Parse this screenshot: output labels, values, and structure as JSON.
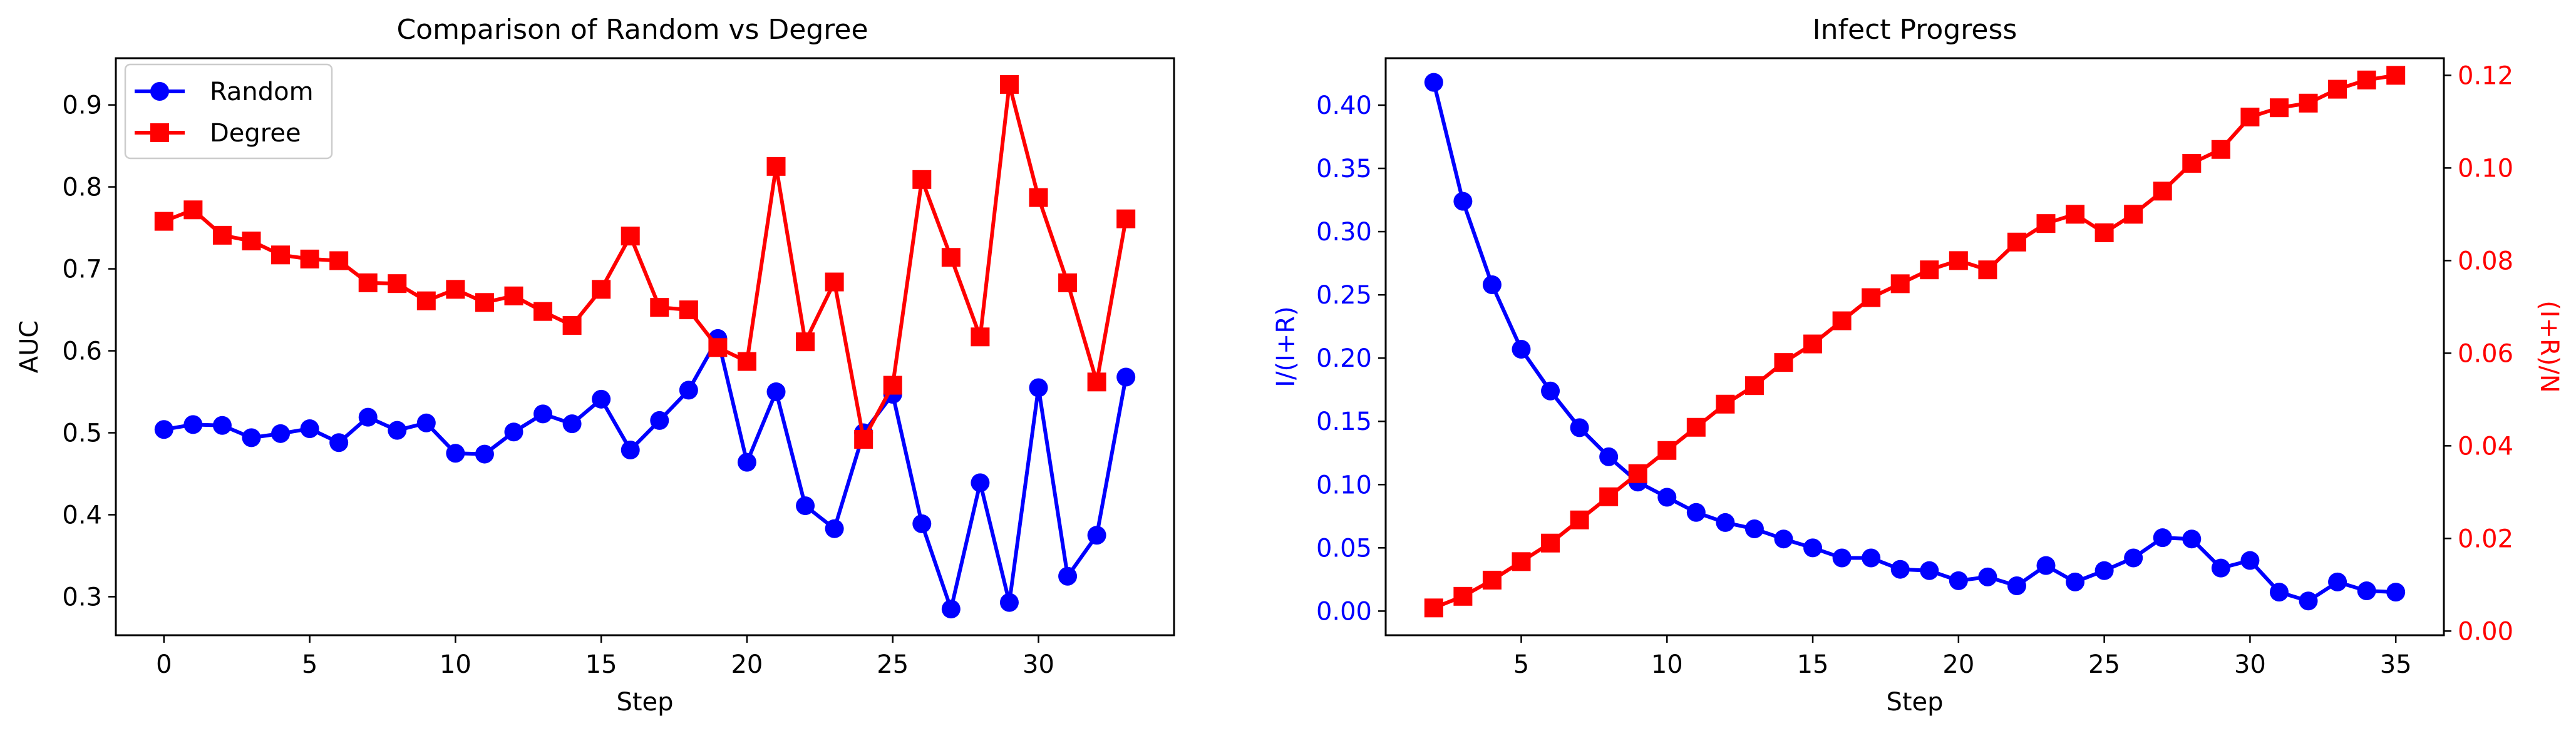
{
  "chart_data": [
    {
      "type": "line",
      "title": "Comparison of Random vs Degree",
      "xlabel": "Step",
      "ylabel": "AUC",
      "xlim": [
        -1.65,
        34.65
      ],
      "ylim": [
        0.253,
        0.957
      ],
      "xticks": [
        0,
        5,
        10,
        15,
        20,
        25,
        30
      ],
      "yticks": [
        0.3,
        0.4,
        0.5,
        0.6,
        0.7,
        0.8,
        0.9
      ],
      "grid": false,
      "legend": "upper-left",
      "x": [
        0,
        1,
        2,
        3,
        4,
        5,
        6,
        7,
        8,
        9,
        10,
        11,
        12,
        13,
        14,
        15,
        16,
        17,
        18,
        19,
        20,
        21,
        22,
        23,
        24,
        25,
        26,
        27,
        28,
        29,
        30,
        31,
        32,
        33
      ],
      "series": [
        {
          "name": "Random",
          "color": "#0000ff",
          "marker": "circle",
          "values": [
            0.504,
            0.51,
            0.509,
            0.494,
            0.499,
            0.505,
            0.488,
            0.519,
            0.503,
            0.512,
            0.475,
            0.474,
            0.501,
            0.523,
            0.511,
            0.541,
            0.479,
            0.515,
            0.552,
            0.615,
            0.464,
            0.55,
            0.411,
            0.383,
            0.5,
            0.547,
            0.389,
            0.285,
            0.439,
            0.293,
            0.555,
            0.325,
            0.375,
            0.568
          ]
        },
        {
          "name": "Degree",
          "color": "#ff0000",
          "marker": "square",
          "values": [
            0.758,
            0.772,
            0.741,
            0.734,
            0.717,
            0.712,
            0.71,
            0.683,
            0.682,
            0.661,
            0.675,
            0.659,
            0.667,
            0.648,
            0.631,
            0.675,
            0.74,
            0.653,
            0.65,
            0.604,
            0.587,
            0.825,
            0.611,
            0.684,
            0.492,
            0.558,
            0.809,
            0.714,
            0.617,
            0.925,
            0.787,
            0.683,
            0.562,
            0.761
          ]
        }
      ]
    },
    {
      "type": "line",
      "title": "Infect Progress",
      "xlabel": "Step",
      "ylabel_left": "I/(I+R)",
      "ylabel_right": "(I+R)/N",
      "xlim": [
        0.35,
        36.65
      ],
      "ylim_left": [
        -0.0191,
        0.4371
      ],
      "ylim_right": [
        -0.0009,
        0.1237
      ],
      "xticks": [
        5,
        10,
        15,
        20,
        25,
        30,
        35
      ],
      "yticks_left": [
        0.0,
        0.05,
        0.1,
        0.15,
        0.2,
        0.25,
        0.3,
        0.35,
        0.4
      ],
      "yticks_right": [
        0.0,
        0.02,
        0.04,
        0.06,
        0.08,
        0.1,
        0.12
      ],
      "grid": false,
      "x": [
        2,
        3,
        4,
        5,
        6,
        7,
        8,
        9,
        10,
        11,
        12,
        13,
        14,
        15,
        16,
        17,
        18,
        19,
        20,
        21,
        22,
        23,
        24,
        25,
        26,
        27,
        28,
        29,
        30,
        31,
        32,
        33,
        34,
        35
      ],
      "series": [
        {
          "name": "I/(I+R)",
          "axis": "left",
          "color": "#0000ff",
          "marker": "circle",
          "values": [
            0.418,
            0.324,
            0.258,
            0.207,
            0.174,
            0.145,
            0.122,
            0.102,
            0.09,
            0.078,
            0.07,
            0.065,
            0.057,
            0.05,
            0.042,
            0.042,
            0.033,
            0.032,
            0.024,
            0.027,
            0.02,
            0.036,
            0.023,
            0.032,
            0.042,
            0.058,
            0.057,
            0.034,
            0.04,
            0.015,
            0.008,
            0.023,
            0.016,
            0.015
          ]
        },
        {
          "name": "(I+R)/N",
          "axis": "right",
          "color": "#ff0000",
          "marker": "square",
          "values": [
            0.005,
            0.0075,
            0.011,
            0.015,
            0.019,
            0.024,
            0.029,
            0.034,
            0.039,
            0.044,
            0.049,
            0.053,
            0.058,
            0.062,
            0.067,
            0.072,
            0.075,
            0.078,
            0.08,
            0.078,
            0.084,
            0.088,
            0.09,
            0.086,
            0.09,
            0.095,
            0.101,
            0.104,
            0.111,
            0.113,
            0.114,
            0.117,
            0.119,
            0.12
          ]
        }
      ]
    }
  ]
}
